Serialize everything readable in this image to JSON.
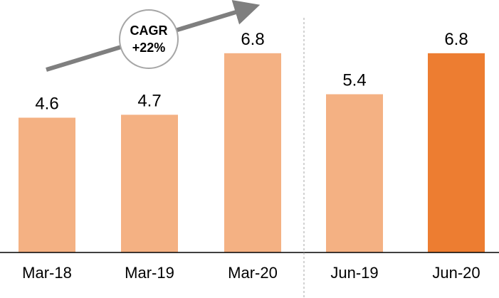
{
  "chart_data": {
    "type": "bar",
    "categories": [
      "Mar-18",
      "Mar-19",
      "Mar-20",
      "Jun-19",
      "Jun-20"
    ],
    "values": [
      4.6,
      4.7,
      6.8,
      5.4,
      6.8
    ],
    "value_labels": [
      "4.6",
      "4.7",
      "6.8",
      "5.4",
      "6.8"
    ],
    "ylim": [
      0,
      8
    ],
    "grid": false,
    "colors": [
      "#F4B183",
      "#F4B183",
      "#F4B183",
      "#F4B183",
      "#ED7D31"
    ],
    "group_separator_after_index": 2,
    "annotation": {
      "line1": "CAGR",
      "line2": "+22%",
      "arrow_color": "#7F7F7F"
    }
  }
}
